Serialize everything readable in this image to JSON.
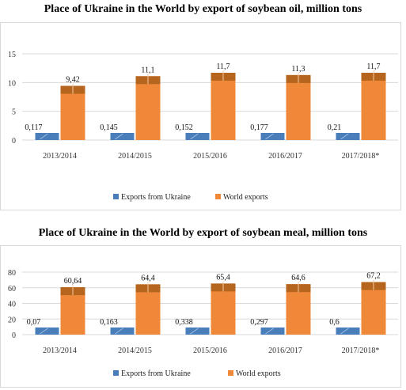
{
  "colors": {
    "exports_ukraine": "#4a7ebb",
    "world": "#f0883a",
    "world_cap": "#b5651d",
    "grid": "#d9d9d9"
  },
  "chart_data": [
    {
      "type": "bar",
      "title": "Place of Ukraine in the World by export of soybean oil, million tons",
      "categories": [
        "2013/2014",
        "2014/2015",
        "2015/2016",
        "2016/2017",
        "2017/2018*"
      ],
      "series": [
        {
          "name": "Exports from Ukraine",
          "values": [
            0.117,
            0.145,
            0.152,
            0.177,
            0.21
          ],
          "labels": [
            "0,117",
            "0,145",
            "0,152",
            "0,177",
            "0,21"
          ]
        },
        {
          "name": "World exports",
          "values": [
            9.42,
            11.1,
            11.7,
            11.3,
            11.7
          ],
          "labels": [
            "9,42",
            "11,1",
            "11,7",
            "11,3",
            "11,7"
          ]
        }
      ],
      "yticks": [
        "0",
        "5",
        "10",
        "15"
      ],
      "ylim": [
        0,
        15
      ],
      "legend": "bottom"
    },
    {
      "type": "bar",
      "title": "Place of Ukraine in the World by export of soybean meal, million tons",
      "categories": [
        "2013/2014",
        "2014/2015",
        "2015/2016",
        "2016/2017",
        "2017/2018*"
      ],
      "series": [
        {
          "name": "Exports from Ukraine",
          "values": [
            0.07,
            0.163,
            0.338,
            0.297,
            0.6
          ],
          "labels": [
            "0,07",
            "0,163",
            "0,338",
            "0,297",
            "0,6"
          ]
        },
        {
          "name": "World exports",
          "values": [
            60.64,
            64.4,
            65.4,
            64.6,
            67.2
          ],
          "labels": [
            "60,64",
            "64,4",
            "65,4",
            "64,6",
            "67,2"
          ]
        }
      ],
      "yticks": [
        "0",
        "20",
        "40",
        "60",
        "80"
      ],
      "ylim": [
        0,
        80
      ],
      "legend": "bottom"
    }
  ]
}
